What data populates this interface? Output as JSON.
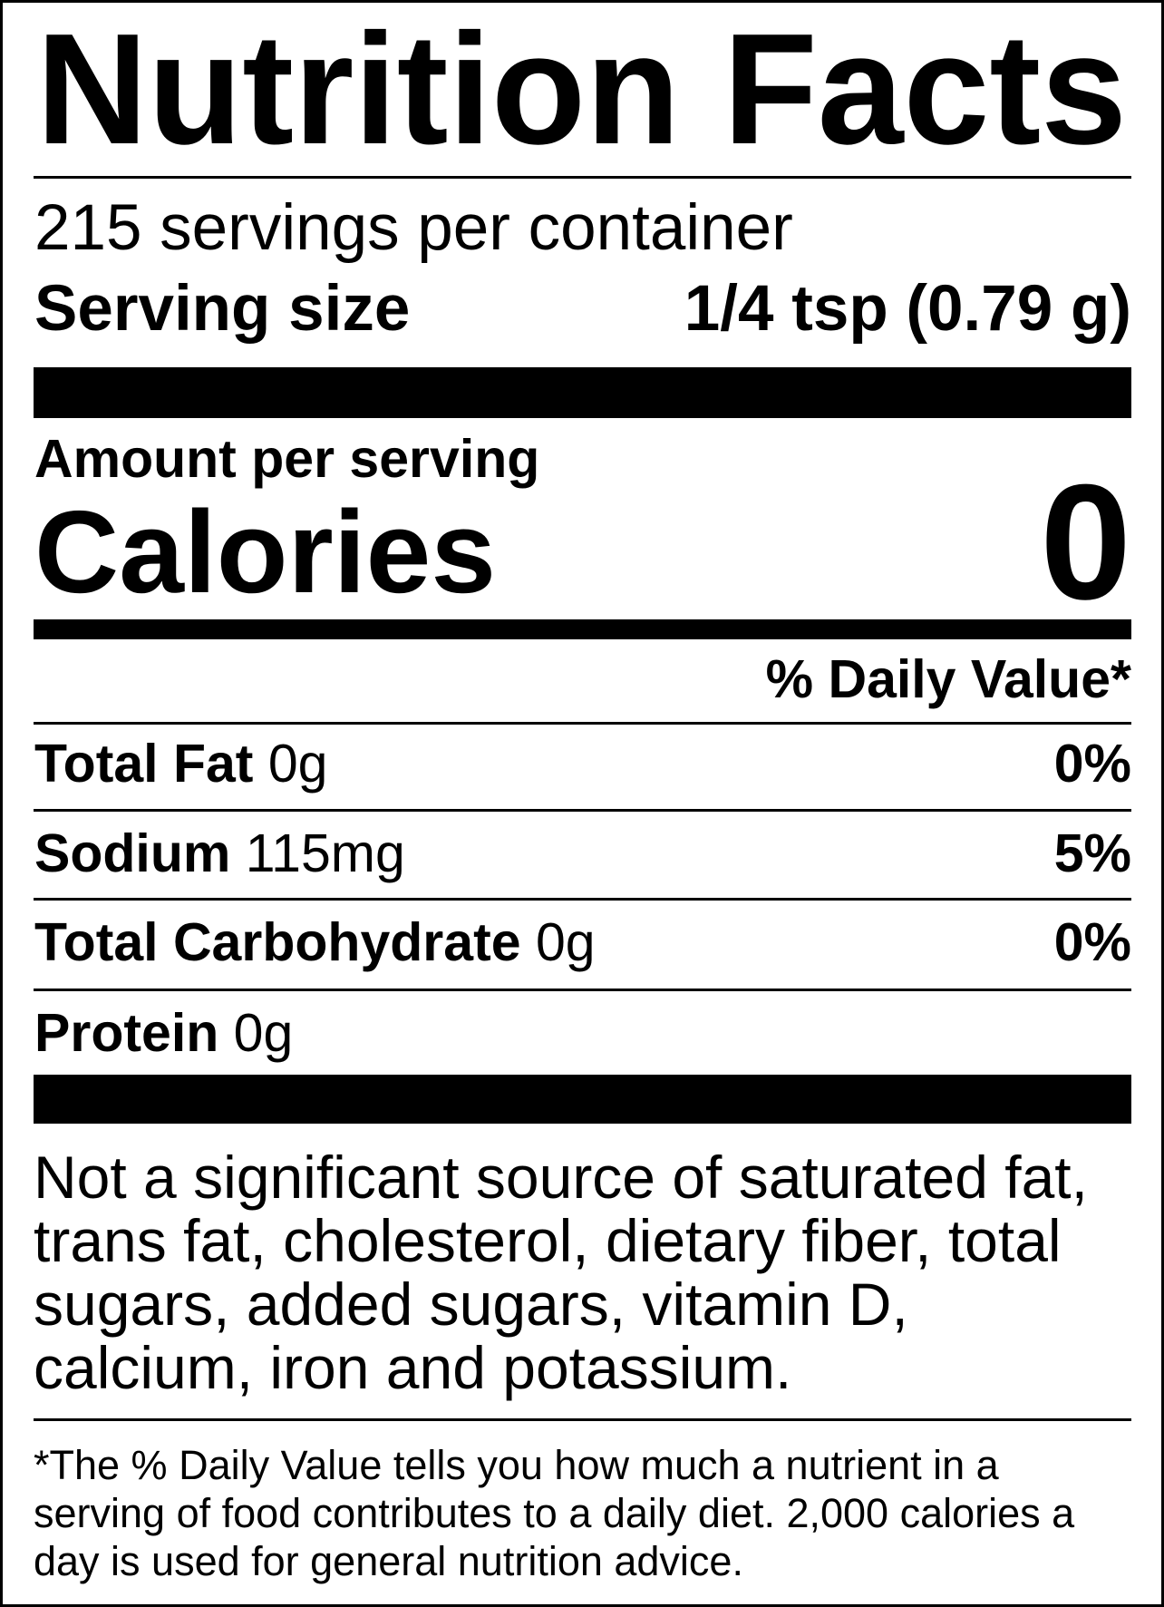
{
  "title": "Nutrition Facts",
  "servings": "215 servings per container",
  "serving_size": {
    "label": "Serving size",
    "value": "1/4 tsp (0.79 g)"
  },
  "amount_per_serving": "Amount per serving",
  "calories": {
    "label": "Calories",
    "value": "0"
  },
  "daily_value_header": "% Daily Value*",
  "nutrients": [
    {
      "name": "Total Fat",
      "amount": "0g",
      "dv": "0%"
    },
    {
      "name": "Sodium",
      "amount": "115mg",
      "dv": "5%"
    },
    {
      "name": "Total Carbohydrate",
      "amount": "0g",
      "dv": "0%"
    },
    {
      "name": "Protein",
      "amount": "0g"
    }
  ],
  "note": "Not a significant source of saturated fat, trans fat, cholesterol, dietary fiber, total sugars, added sugars, vitamin D, calcium, iron and potassium.",
  "footnote": "*The % Daily Value tells you how much a nutrient in a serving of food contributes to a daily diet. 2,000 calories a day is used for general nutrition advice."
}
